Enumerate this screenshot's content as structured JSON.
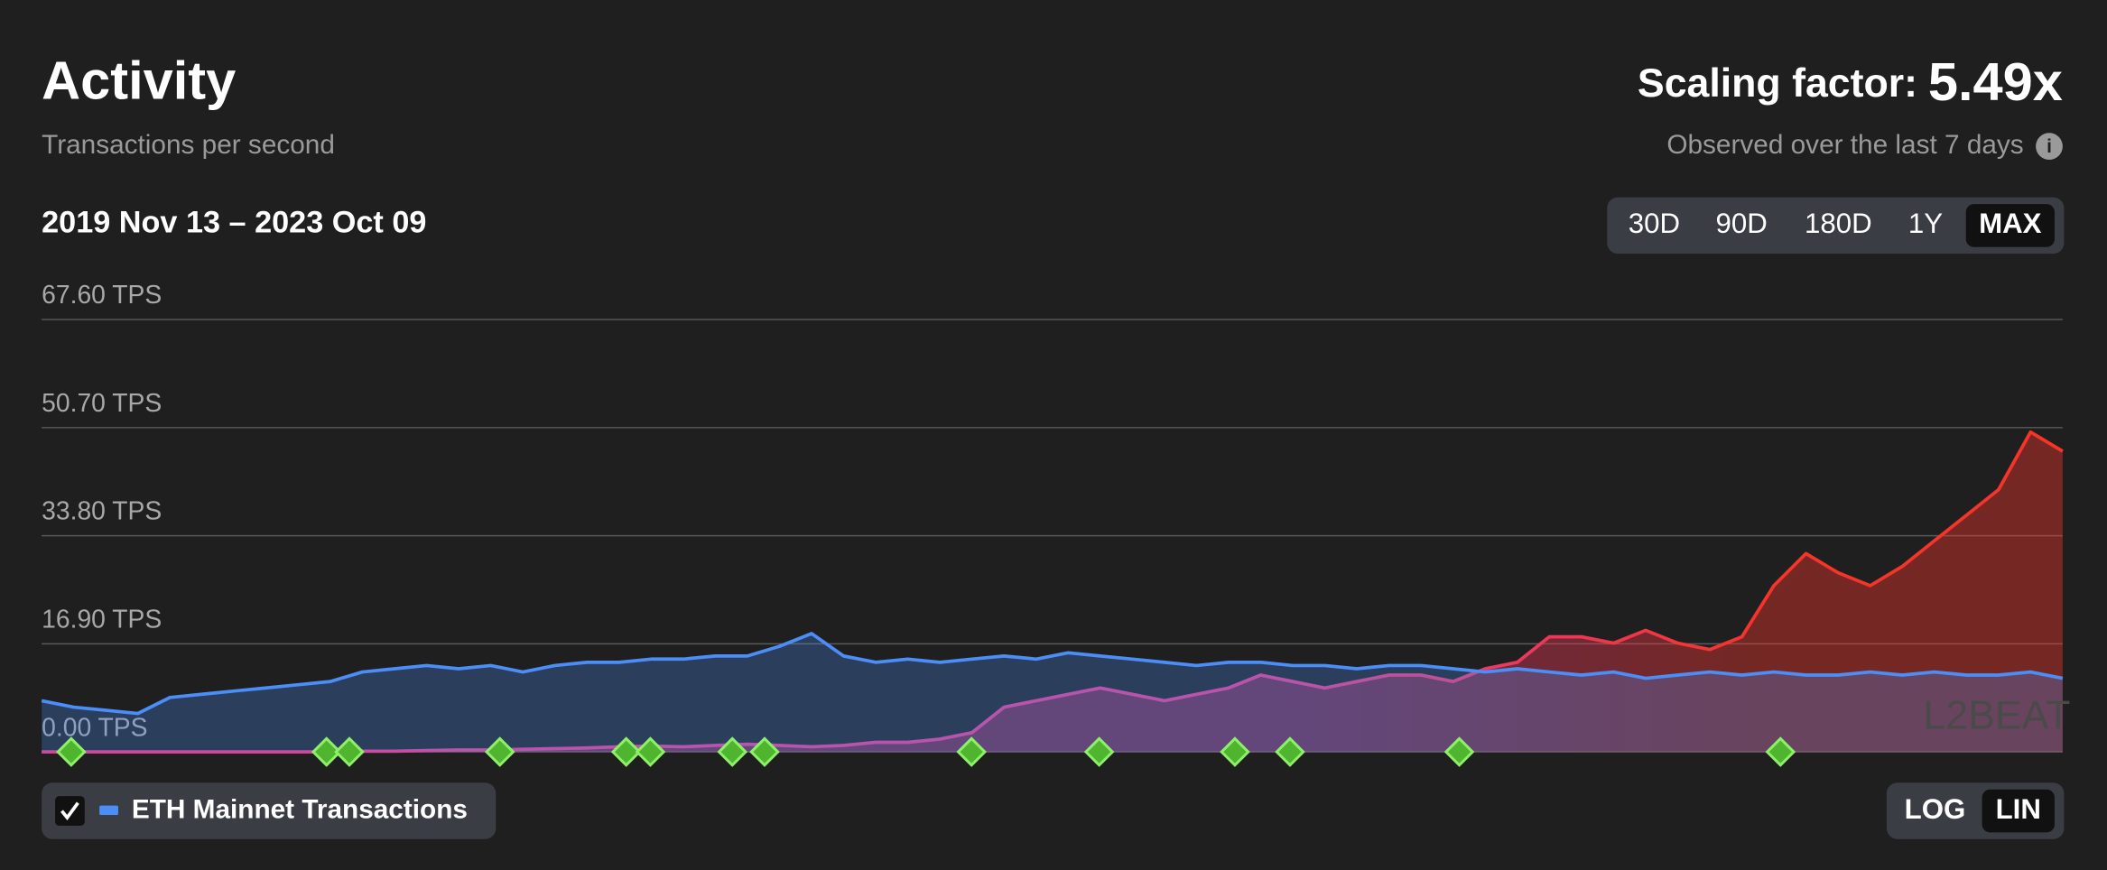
{
  "header": {
    "title": "Activity",
    "subtitle": "Transactions per second",
    "date_range": "2019 Nov 13 – 2023 Oct 09"
  },
  "scaling": {
    "label": "Scaling factor:",
    "value": "5.49x",
    "note": "Observed over the last 7 days",
    "info_icon": "i"
  },
  "range_buttons": [
    "30D",
    "90D",
    "180D",
    "1Y",
    "MAX"
  ],
  "active_range": "MAX",
  "scale_buttons": [
    "LOG",
    "LIN"
  ],
  "active_scale": "LIN",
  "watermark": "L2BEAT",
  "chart_data": {
    "type": "area",
    "ylim": [
      0,
      67.6
    ],
    "grid": true,
    "log_scale": false,
    "yticks": [
      {
        "value": 0,
        "label": "0.00 TPS"
      },
      {
        "value": 16.9,
        "label": "16.90 TPS"
      },
      {
        "value": 33.8,
        "label": "33.80 TPS"
      },
      {
        "value": 50.7,
        "label": "50.70 TPS"
      },
      {
        "value": 67.6,
        "label": "67.60 TPS"
      }
    ],
    "series": [
      {
        "name": "ETH Mainnet Transactions",
        "color": "#4b8ef7",
        "values": [
          8,
          7,
          6.5,
          6,
          8.5,
          9,
          9.5,
          10,
          10.5,
          11,
          12.5,
          13,
          13.5,
          13,
          13.5,
          12.5,
          13.5,
          14,
          14,
          14.5,
          14.5,
          15,
          15,
          16.5,
          18.5,
          15,
          14,
          14.5,
          14,
          14.5,
          15,
          14.5,
          15.5,
          15,
          14.5,
          14,
          13.5,
          14,
          14,
          13.5,
          13.5,
          13,
          13.5,
          13.5,
          13,
          12.5,
          13,
          12.5,
          12,
          12.5,
          11.5,
          12,
          12.5,
          12,
          12.5,
          12,
          12,
          12.5,
          12,
          12.5,
          12,
          12,
          12.5,
          11.5
        ]
      },
      {
        "color": "#e23d8e",
        "color_end": "#f5342a",
        "values": [
          0,
          0,
          0,
          0,
          0,
          0,
          0,
          0,
          0,
          0,
          0.1,
          0.1,
          0.2,
          0.3,
          0.3,
          0.4,
          0.5,
          0.6,
          0.8,
          0.9,
          0.8,
          1,
          1.2,
          1,
          0.8,
          1,
          1.5,
          1.5,
          2,
          3,
          7,
          8,
          9,
          10,
          9,
          8,
          9,
          10,
          12,
          11,
          10,
          11,
          12,
          12,
          11,
          13,
          14,
          18,
          18,
          17,
          19,
          17,
          16,
          18,
          26,
          31,
          28,
          26,
          29,
          33,
          37,
          41,
          50,
          47
        ]
      }
    ]
  }
}
